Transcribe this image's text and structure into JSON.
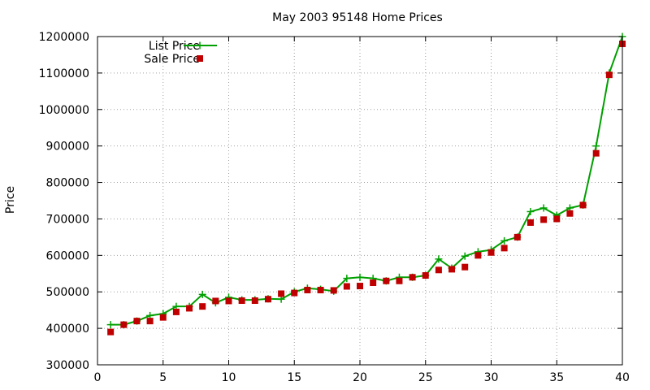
{
  "chart_data": {
    "type": "line",
    "title": "May 2003 95148 Home Prices",
    "xlabel": "",
    "ylabel": "Price",
    "xlim": [
      0,
      40
    ],
    "ylim": [
      300000,
      1200000
    ],
    "xticks": [
      0,
      5,
      10,
      15,
      20,
      25,
      30,
      35,
      40
    ],
    "yticks": [
      300000,
      400000,
      500000,
      600000,
      700000,
      800000,
      900000,
      1000000,
      1100000,
      1200000
    ],
    "grid": true,
    "legend_position": "top-left",
    "x": [
      1,
      2,
      3,
      4,
      5,
      6,
      7,
      8,
      9,
      10,
      11,
      12,
      13,
      14,
      15,
      16,
      17,
      18,
      19,
      20,
      21,
      22,
      23,
      24,
      25,
      26,
      27,
      28,
      29,
      30,
      31,
      32,
      33,
      34,
      35,
      36,
      37,
      38,
      39,
      40
    ],
    "series": [
      {
        "name": "List Price",
        "style": "line+cross",
        "color": "#00a000",
        "values": [
          410000,
          410000,
          420000,
          435000,
          440000,
          460000,
          460000,
          493000,
          470000,
          485000,
          478000,
          478000,
          481000,
          480000,
          500000,
          510000,
          507000,
          502000,
          537000,
          540000,
          537000,
          530000,
          540000,
          540000,
          545000,
          590000,
          565000,
          598000,
          610000,
          615000,
          640000,
          650000,
          720000,
          730000,
          710000,
          730000,
          738000,
          900000,
          1100000,
          1200000
        ]
      },
      {
        "name": "Sale Price",
        "style": "square",
        "color": "#c00000",
        "values": [
          390000,
          410000,
          420000,
          420000,
          430000,
          445000,
          455000,
          460000,
          475000,
          475000,
          476000,
          476000,
          480000,
          495000,
          497000,
          505000,
          505000,
          504000,
          515000,
          516000,
          525000,
          530000,
          530000,
          540000,
          545000,
          560000,
          562000,
          568000,
          600000,
          608000,
          620000,
          650000,
          690000,
          698000,
          700000,
          715000,
          738000,
          880000,
          1095000,
          1180000
        ]
      }
    ]
  }
}
